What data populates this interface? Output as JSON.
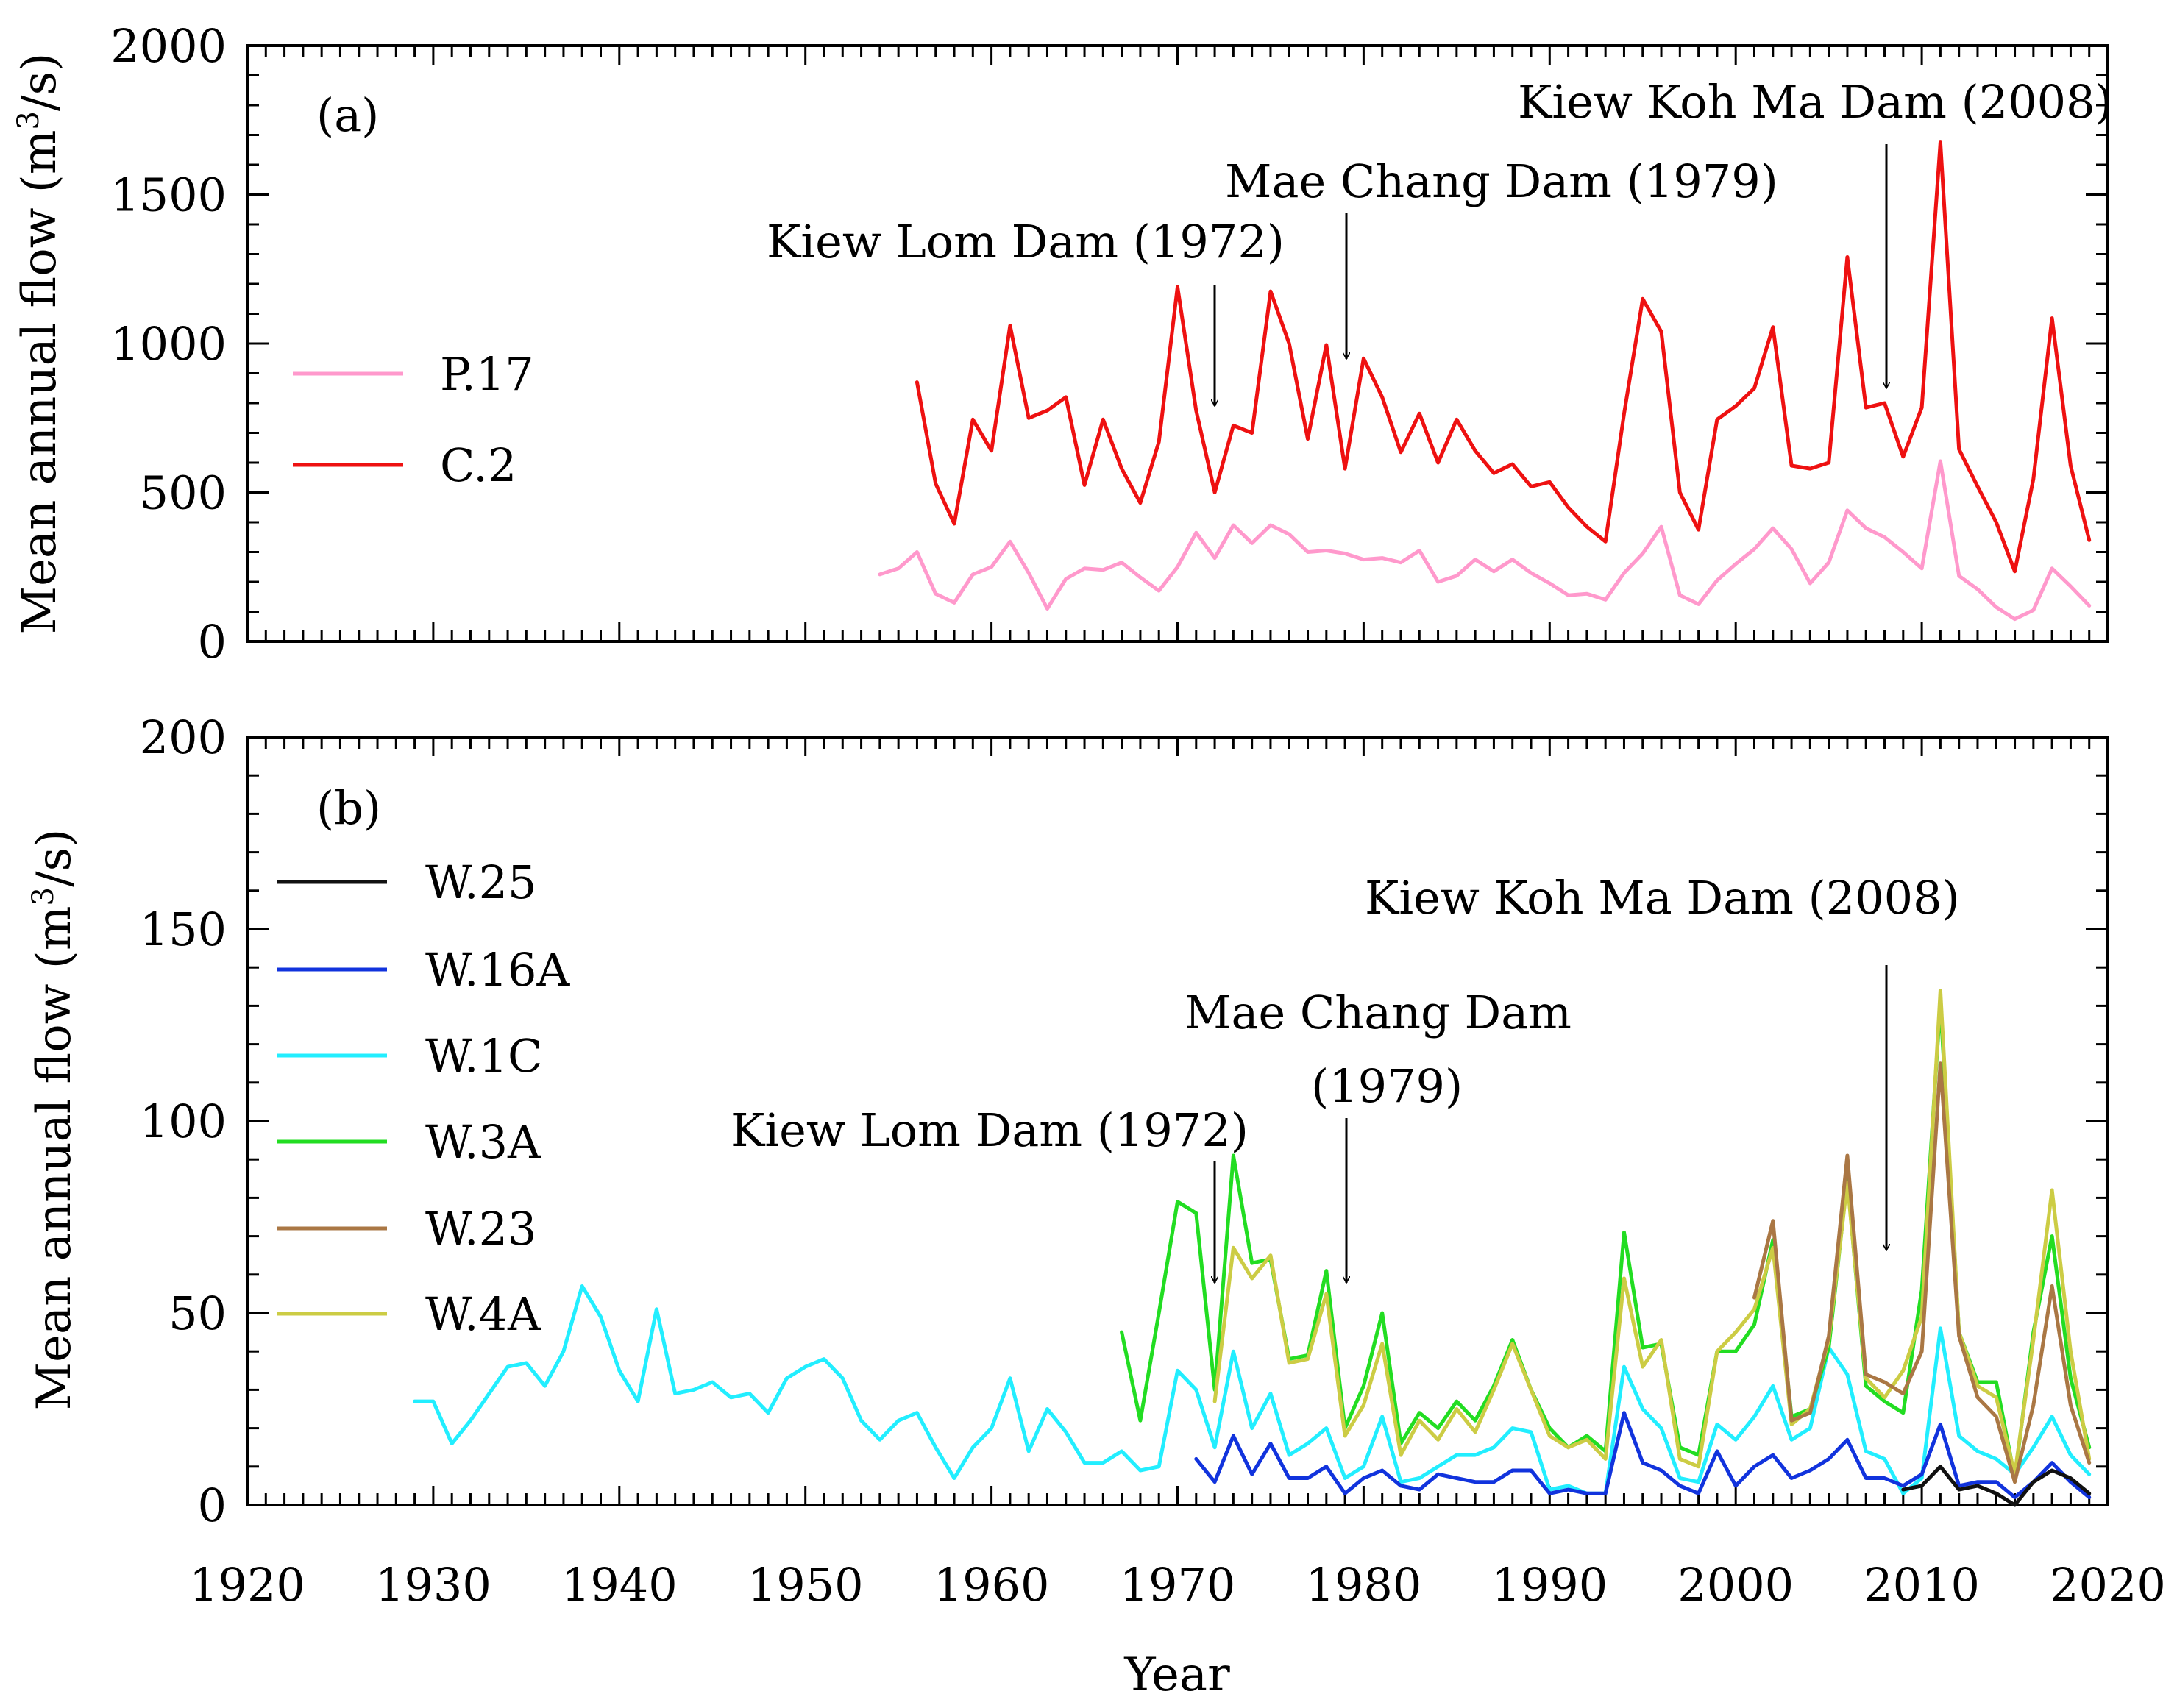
{
  "figure": {
    "xlabel": "Year"
  },
  "chart_data": [
    {
      "type": "line",
      "panel": "(a)",
      "ylabel": "Mean annual flow (m³/s)",
      "xlim": [
        1920,
        2020
      ],
      "ylim": [
        0,
        2000
      ],
      "xticks": [
        1920,
        1930,
        1940,
        1950,
        1960,
        1970,
        1980,
        1990,
        2000,
        2010,
        2020
      ],
      "yticks": [
        0,
        500,
        1000,
        1500,
        2000
      ],
      "legend_position": "left",
      "series": [
        {
          "name": "P.17",
          "color": "#ff99cc",
          "x": [
            1954,
            1955,
            1956,
            1957,
            1958,
            1959,
            1960,
            1961,
            1962,
            1963,
            1964,
            1965,
            1966,
            1967,
            1968,
            1969,
            1970,
            1971,
            1972,
            1973,
            1974,
            1975,
            1976,
            1977,
            1978,
            1979,
            1980,
            1981,
            1982,
            1983,
            1984,
            1985,
            1986,
            1987,
            1988,
            1989,
            1990,
            1991,
            1992,
            1993,
            1994,
            1995,
            1996,
            1997,
            1998,
            1999,
            2000,
            2001,
            2002,
            2003,
            2004,
            2005,
            2006,
            2007,
            2008,
            2009,
            2010,
            2011,
            2012,
            2013,
            2014,
            2015,
            2016,
            2017,
            2018,
            2019
          ],
          "values": [
            225,
            245,
            300,
            160,
            130,
            225,
            250,
            335,
            230,
            110,
            210,
            245,
            240,
            265,
            215,
            170,
            250,
            365,
            280,
            390,
            330,
            390,
            360,
            300,
            305,
            295,
            275,
            280,
            265,
            305,
            200,
            220,
            275,
            235,
            275,
            230,
            195,
            155,
            160,
            140,
            230,
            295,
            385,
            155,
            125,
            205,
            260,
            310,
            380,
            310,
            195,
            265,
            440,
            380,
            350,
            300,
            245,
            605,
            220,
            175,
            115,
            75,
            105,
            245,
            185,
            120
          ]
        },
        {
          "name": "C.2",
          "color": "#ee1111",
          "x": [
            1956,
            1957,
            1958,
            1959,
            1960,
            1961,
            1962,
            1963,
            1964,
            1965,
            1966,
            1967,
            1968,
            1969,
            1970,
            1971,
            1972,
            1973,
            1974,
            1975,
            1976,
            1977,
            1978,
            1979,
            1980,
            1981,
            1982,
            1983,
            1984,
            1985,
            1986,
            1987,
            1988,
            1989,
            1990,
            1991,
            1992,
            1993,
            1994,
            1995,
            1996,
            1997,
            1998,
            1999,
            2000,
            2001,
            2002,
            2003,
            2004,
            2005,
            2006,
            2007,
            2008,
            2009,
            2010,
            2011,
            2012,
            2013,
            2014,
            2015,
            2016,
            2017,
            2018,
            2019
          ],
          "values": [
            870,
            530,
            395,
            745,
            640,
            1060,
            750,
            775,
            820,
            525,
            745,
            580,
            465,
            670,
            1190,
            775,
            500,
            725,
            700,
            1175,
            1000,
            680,
            995,
            580,
            950,
            820,
            635,
            765,
            600,
            745,
            640,
            565,
            595,
            520,
            535,
            450,
            385,
            335,
            765,
            1150,
            1040,
            500,
            375,
            745,
            790,
            850,
            1055,
            590,
            580,
            600,
            1290,
            785,
            800,
            620,
            785,
            1675,
            645,
            520,
            400,
            235,
            545,
            1085,
            590,
            340
          ]
        }
      ],
      "annotations": [
        {
          "text": "Kiew Lom Dam (1972)",
          "x": 1972
        },
        {
          "text": "Mae Chang Dam (1979)",
          "x": 1979
        },
        {
          "text": "Kiew Koh Ma Dam (2008)",
          "x": 2008
        }
      ]
    },
    {
      "type": "line",
      "panel": "(b)",
      "ylabel": "Mean annual flow (m³/s)",
      "xlim": [
        1920,
        2020
      ],
      "ylim": [
        0,
        200
      ],
      "xticks": [
        1920,
        1930,
        1940,
        1950,
        1960,
        1970,
        1980,
        1990,
        2000,
        2010,
        2020
      ],
      "yticks": [
        0,
        50,
        100,
        150,
        200
      ],
      "legend_position": "left",
      "series": [
        {
          "name": "W.1C",
          "color": "#22eeff",
          "x": [
            1929,
            1930,
            1931,
            1932,
            1933,
            1934,
            1935,
            1936,
            1937,
            1938,
            1939,
            1940,
            1941,
            1942,
            1943,
            1944,
            1945,
            1946,
            1947,
            1948,
            1949,
            1950,
            1951,
            1952,
            1953,
            1954,
            1955,
            1956,
            1957,
            1958,
            1959,
            1960,
            1961,
            1962,
            1963,
            1964,
            1965,
            1966,
            1967,
            1968,
            1969,
            1970,
            1971,
            1972,
            1973,
            1974,
            1975,
            1976,
            1977,
            1978,
            1979,
            1980,
            1981,
            1982,
            1983,
            1984,
            1985,
            1986,
            1987,
            1988,
            1989,
            1990,
            1991,
            1992,
            1993,
            1994,
            1995,
            1996,
            1997,
            1998,
            1999,
            2000,
            2001,
            2002,
            2003,
            2004,
            2005,
            2006,
            2007,
            2008,
            2009,
            2010,
            2011,
            2012,
            2013,
            2014,
            2015,
            2016,
            2017,
            2018,
            2019
          ],
          "values": [
            27,
            27,
            16,
            22,
            29,
            36,
            37,
            31,
            40,
            57,
            49,
            35,
            27,
            51,
            29,
            30,
            32,
            28,
            29,
            24,
            33,
            36,
            38,
            33,
            22,
            17,
            22,
            24,
            15,
            7,
            15,
            20,
            33,
            14,
            25,
            19,
            11,
            11,
            14,
            9,
            10,
            35,
            30,
            15,
            40,
            20,
            29,
            13,
            16,
            20,
            7,
            10,
            23,
            6,
            7,
            10,
            13,
            13,
            15,
            20,
            19,
            4,
            5,
            3,
            3,
            36,
            25,
            20,
            7,
            6,
            21,
            17,
            23,
            31,
            17,
            20,
            41,
            34,
            14,
            12,
            3,
            7,
            46,
            18,
            14,
            12,
            8,
            15,
            23,
            13,
            8
          ]
        },
        {
          "name": "W.3A",
          "color": "#22dd22",
          "x": [
            1967,
            1968,
            1969,
            1970,
            1971,
            1972,
            1973,
            1974,
            1975,
            1976,
            1977,
            1978,
            1979,
            1980,
            1981,
            1982,
            1983,
            1984,
            1985,
            1986,
            1987,
            1988,
            1989,
            1990,
            1991,
            1992,
            1993,
            1994,
            1995,
            1996,
            1997,
            1998,
            1999,
            2000,
            2001,
            2002,
            2003,
            2004,
            2005,
            2006,
            2007,
            2008,
            2009,
            2010,
            2011,
            2012,
            2013,
            2014,
            2015,
            2016,
            2017,
            2018,
            2019
          ],
          "values": [
            45,
            22,
            50,
            79,
            76,
            30,
            91,
            63,
            64,
            38,
            39,
            61,
            20,
            31,
            50,
            16,
            24,
            20,
            27,
            22,
            31,
            43,
            30,
            20,
            15,
            18,
            14,
            71,
            41,
            42,
            15,
            13,
            40,
            40,
            47,
            69,
            23,
            25,
            41,
            85,
            31,
            27,
            24,
            56,
            131,
            45,
            32,
            32,
            7,
            45,
            70,
            33,
            15
          ]
        },
        {
          "name": "W.4A",
          "color": "#cccc44",
          "x": [
            1972,
            1973,
            1974,
            1975,
            1976,
            1977,
            1978,
            1979,
            1980,
            1981,
            1982,
            1983,
            1984,
            1985,
            1986,
            1987,
            1988,
            1989,
            1990,
            1991,
            1992,
            1993,
            1994,
            1995,
            1996,
            1997,
            1998,
            1999,
            2000,
            2001,
            2002,
            2003,
            2004,
            2005,
            2006,
            2007,
            2008,
            2009,
            2010,
            2011,
            2012,
            2013,
            2014,
            2015,
            2016,
            2017,
            2018,
            2019
          ],
          "values": [
            27,
            67,
            59,
            65,
            37,
            38,
            55,
            18,
            26,
            42,
            13,
            22,
            17,
            25,
            19,
            30,
            42,
            30,
            18,
            15,
            17,
            12,
            59,
            36,
            43,
            12,
            10,
            40,
            45,
            51,
            67,
            21,
            25,
            43,
            84,
            33,
            28,
            35,
            49,
            134,
            45,
            31,
            28,
            8,
            43,
            82,
            40,
            12
          ]
        },
        {
          "name": "W.23",
          "color": "#aa7744",
          "x": [
            2001,
            2002,
            2003,
            2004,
            2005,
            2006,
            2007,
            2008,
            2009,
            2010,
            2011,
            2012,
            2013,
            2014,
            2015,
            2016,
            2017,
            2018,
            2019
          ],
          "values": [
            54,
            74,
            22,
            24,
            44,
            91,
            34,
            32,
            29,
            40,
            115,
            44,
            28,
            23,
            6,
            26,
            57,
            26,
            11
          ]
        },
        {
          "name": "W.16A",
          "color": "#1133dd",
          "x": [
            1971,
            1972,
            1973,
            1974,
            1975,
            1976,
            1977,
            1978,
            1979,
            1980,
            1981,
            1982,
            1983,
            1984,
            1985,
            1986,
            1987,
            1988,
            1989,
            1990,
            1991,
            1992,
            1993,
            1994,
            1995,
            1996,
            1997,
            1998,
            1999,
            2000,
            2001,
            2002,
            2003,
            2004,
            2005,
            2006,
            2007,
            2008,
            2009,
            2010,
            2011,
            2012,
            2013,
            2014,
            2015,
            2016,
            2017,
            2018,
            2019
          ],
          "values": [
            12,
            6,
            18,
            8,
            16,
            7,
            7,
            10,
            3,
            7,
            9,
            5,
            4,
            8,
            7,
            6,
            6,
            9,
            9,
            3,
            4,
            3,
            3,
            24,
            11,
            9,
            5,
            3,
            14,
            5,
            10,
            13,
            7,
            9,
            12,
            17,
            7,
            7,
            5,
            8,
            21,
            5,
            6,
            6,
            2,
            6,
            11,
            6,
            2
          ]
        },
        {
          "name": "W.25",
          "color": "#111111",
          "x": [
            2009,
            2010,
            2011,
            2012,
            2013,
            2014,
            2015,
            2016,
            2017,
            2018,
            2019
          ],
          "values": [
            4,
            5,
            10,
            4,
            5,
            3,
            0,
            6,
            9,
            7,
            3
          ]
        }
      ],
      "legend_order": [
        "W.25",
        "W.16A",
        "W.1C",
        "W.3A",
        "W.23",
        "W.4A"
      ],
      "annotations": [
        {
          "text": "Kiew Lom Dam (1972)",
          "x": 1972
        },
        {
          "text": "Mae Chang Dam",
          "text2": "(1979)",
          "x": 1979
        },
        {
          "text": "Kiew Koh Ma Dam (2008)",
          "x": 2008
        }
      ]
    }
  ]
}
